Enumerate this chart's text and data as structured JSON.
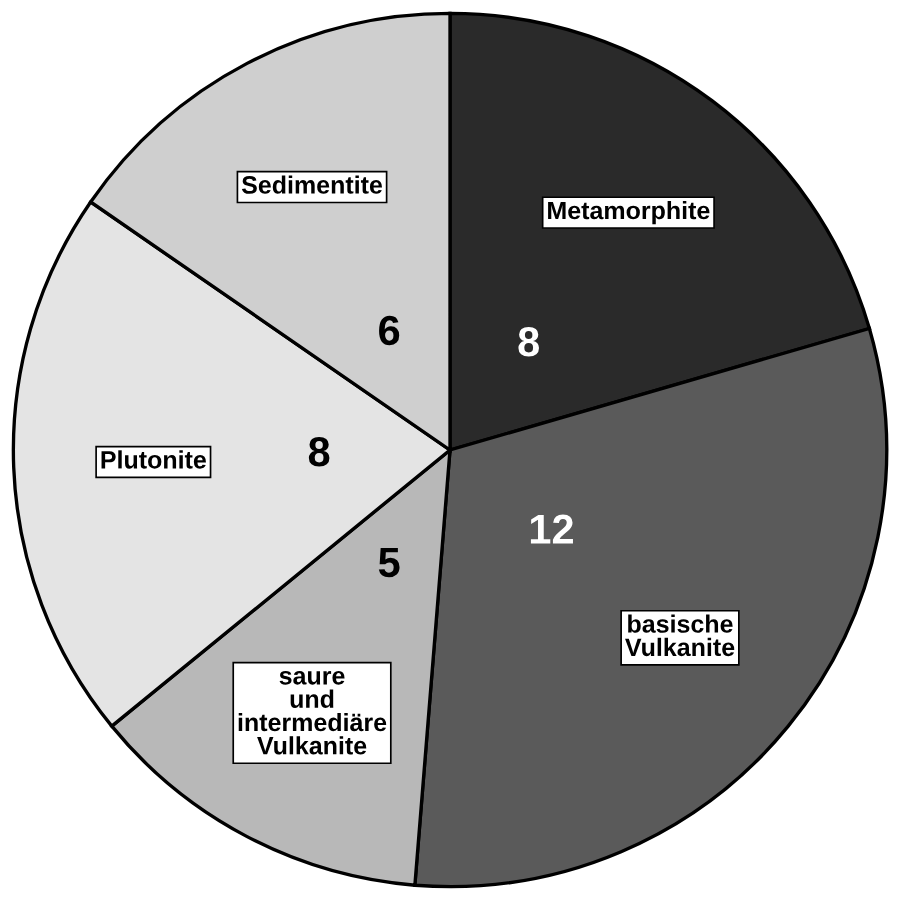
{
  "chart_data": {
    "type": "pie",
    "categories": [
      "Metamorphite",
      "basische\nVulkanite",
      "saure\nund\nintermediäre\nVulkanite",
      "Plutonite",
      "Sedimentite"
    ],
    "values": [
      8,
      12,
      5,
      8,
      6
    ],
    "colors": [
      "#2a2a2a",
      "#5a5a5a",
      "#b8b8b8",
      "#e4e4e4",
      "#cfcfcf"
    ],
    "data_labels": true,
    "legend": false
  }
}
